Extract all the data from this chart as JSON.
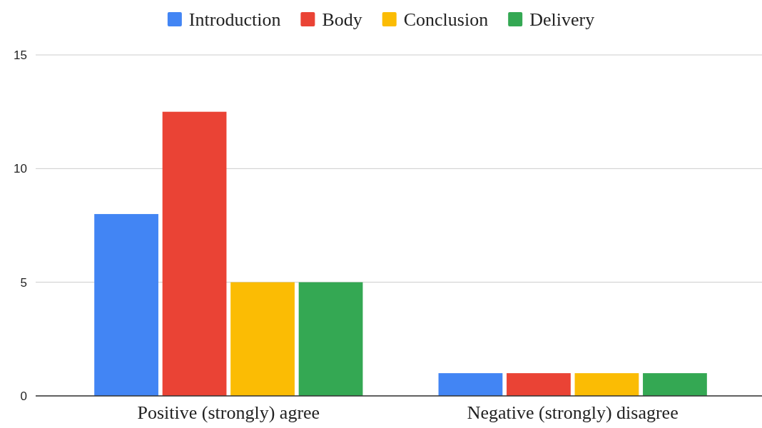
{
  "chart_data": {
    "type": "bar",
    "categories": [
      "Positive (strongly) agree",
      "Negative (strongly) disagree"
    ],
    "series": [
      {
        "name": "Introduction",
        "color": "#4285f4",
        "values": [
          8,
          1
        ]
      },
      {
        "name": "Body",
        "color": "#ea4335",
        "values": [
          12.5,
          1
        ]
      },
      {
        "name": "Conclusion",
        "color": "#fbbc04",
        "values": [
          5,
          1
        ]
      },
      {
        "name": "Delivery",
        "color": "#34a853",
        "values": [
          5,
          1
        ]
      }
    ],
    "ylim": [
      0,
      15
    ],
    "yticks": [
      0,
      5,
      10,
      15
    ],
    "grid": "y",
    "legend": "top"
  }
}
